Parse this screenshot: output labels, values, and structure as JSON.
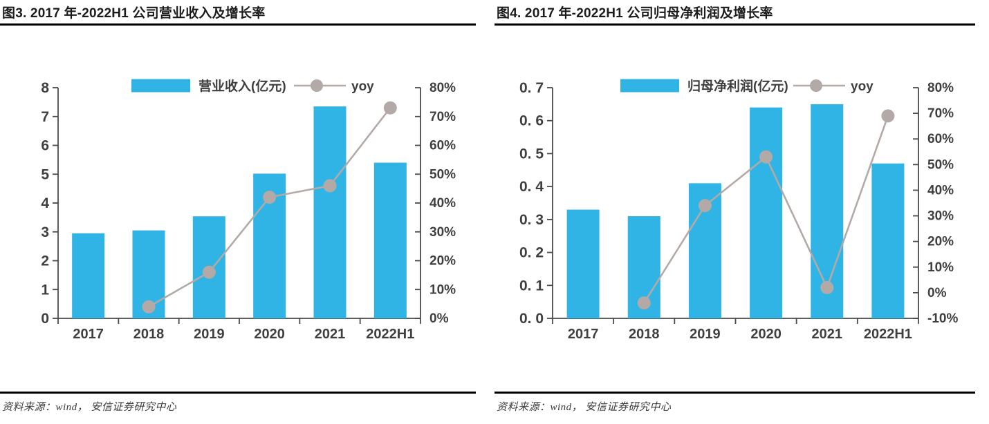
{
  "figures": [
    {
      "id": "figure-3",
      "title": "图3. 2017 年-2022H1 公司营业收入及增长率",
      "source": "资料来源：wind， 安信证券研究中心"
    },
    {
      "id": "figure-4",
      "title": "图4. 2017 年-2022H1 公司归母净利润及增长率",
      "source": "资料来源：wind， 安信证券研究中心"
    }
  ],
  "chart_data": [
    {
      "type": "bar",
      "subtype": "bar-line-combo",
      "title": "图3. 2017 年-2022H1 公司营业收入及增长率",
      "categories": [
        "2017",
        "2018",
        "2019",
        "2020",
        "2021",
        "2022H1"
      ],
      "series": [
        {
          "name": "营业收入(亿元)",
          "kind": "bar",
          "axis": "left",
          "values": [
            2.95,
            3.05,
            3.54,
            5.02,
            7.35,
            5.4
          ]
        },
        {
          "name": "yoy",
          "kind": "line",
          "axis": "right",
          "unit": "%",
          "values": [
            null,
            4,
            16,
            42,
            46,
            73
          ]
        }
      ],
      "left_axis": {
        "min": 0,
        "max": 8,
        "tick_labels_top_to_bottom": [
          "8",
          "7",
          "6",
          "5",
          "4",
          "3",
          "2",
          "1",
          "0"
        ]
      },
      "right_axis": {
        "min": 0,
        "max": 80,
        "tick_labels_top_to_bottom": [
          "80%",
          "70%",
          "60%",
          "50%",
          "40%",
          "30%",
          "20%",
          "10%",
          "0%"
        ]
      },
      "legend": [
        "营业收入(亿元)",
        "yoy"
      ],
      "legend_position": "top",
      "grid": false,
      "colors": {
        "bar": "#2FB4E5",
        "line": "#B3AAA7",
        "axis": "#4a4a4a",
        "tick_text": "#3f3f3f"
      }
    },
    {
      "type": "bar",
      "subtype": "bar-line-combo",
      "title": "图4. 2017 年-2022H1 公司归母净利润及增长率",
      "categories": [
        "2017",
        "2018",
        "2019",
        "2020",
        "2021",
        "2022H1"
      ],
      "series": [
        {
          "name": "归母净利润(亿元)",
          "kind": "bar",
          "axis": "left",
          "values": [
            0.33,
            0.31,
            0.41,
            0.64,
            0.65,
            0.47
          ]
        },
        {
          "name": "yoy",
          "kind": "line",
          "axis": "right",
          "unit": "%",
          "values": [
            null,
            -4,
            34,
            53,
            2,
            69
          ]
        }
      ],
      "left_axis": {
        "min": 0,
        "max": 0.7,
        "tick_labels_top_to_bottom": [
          "0. 7",
          "0. 6",
          "0. 5",
          "0. 4",
          "0. 3",
          "0. 2",
          "0. 1",
          "0. 0"
        ]
      },
      "right_axis": {
        "min": -10,
        "max": 80,
        "tick_labels_top_to_bottom": [
          "80%",
          "70%",
          "60%",
          "50%",
          "40%",
          "30%",
          "20%",
          "10%",
          "0%",
          "-10%"
        ]
      },
      "legend": [
        "归母净利润(亿元)",
        "yoy"
      ],
      "legend_position": "top",
      "grid": false,
      "colors": {
        "bar": "#2FB4E5",
        "line": "#B3AAA7",
        "axis": "#4a4a4a",
        "tick_text": "#3f3f3f"
      }
    }
  ]
}
